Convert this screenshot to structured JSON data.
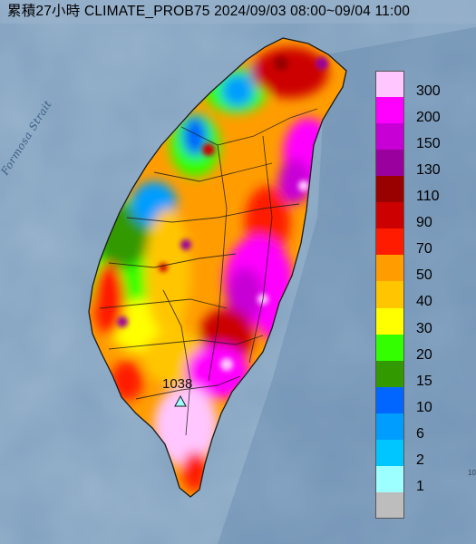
{
  "map": {
    "title": "累積27小時 CLIMATE_PROB75 2024/09/03 08:00~09/04 11:00",
    "sea_label": "Formosa Strait",
    "max_value_label": "1038",
    "edge_tag": "10",
    "colors": {
      "sea": "#7f9fbd",
      "land_outline": "#1a1a1a"
    }
  },
  "legend": {
    "items": [
      {
        "label": "300",
        "color": "#ffc6ff"
      },
      {
        "label": "200",
        "color": "#ff00ff"
      },
      {
        "label": "150",
        "color": "#c700d6"
      },
      {
        "label": "130",
        "color": "#99009e"
      },
      {
        "label": "110",
        "color": "#990000"
      },
      {
        "label": "90",
        "color": "#cc0000"
      },
      {
        "label": "70",
        "color": "#ff1b00"
      },
      {
        "label": "50",
        "color": "#ff9d00"
      },
      {
        "label": "40",
        "color": "#ffc600"
      },
      {
        "label": "30",
        "color": "#ffff00"
      },
      {
        "label": "20",
        "color": "#33ff00"
      },
      {
        "label": "15",
        "color": "#339900"
      },
      {
        "label": "10",
        "color": "#0066ff"
      },
      {
        "label": "6",
        "color": "#009dff"
      },
      {
        "label": "2",
        "color": "#00c6ff"
      },
      {
        "label": "1",
        "color": "#9dffff"
      },
      {
        "label": "",
        "color": "#bdbdbd"
      }
    ]
  }
}
